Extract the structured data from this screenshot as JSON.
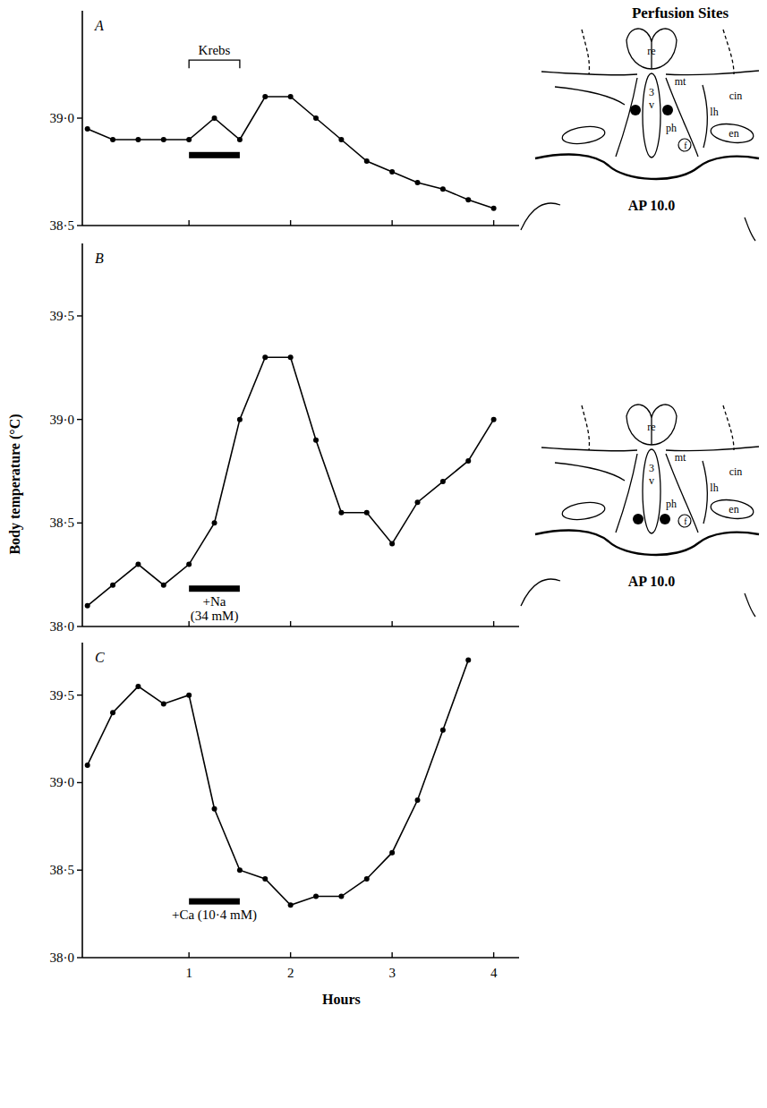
{
  "chart_data": [
    {
      "type": "line",
      "title": "A",
      "x": [
        0,
        0.25,
        0.5,
        0.75,
        1,
        1.25,
        1.5,
        1.75,
        2,
        2.25,
        2.5,
        2.75,
        3,
        3.25,
        3.5,
        3.75,
        4
      ],
      "values": [
        38.95,
        38.9,
        38.9,
        38.9,
        38.9,
        39.0,
        38.9,
        39.1,
        39.1,
        39.0,
        38.9,
        38.8,
        38.75,
        38.7,
        38.67,
        38.62,
        38.58
      ],
      "xlim": [
        -0.05,
        4.25
      ],
      "ylim": [
        38.5,
        39.5
      ],
      "xticks": [
        1,
        2,
        3,
        4
      ],
      "yticks": [
        {
          "value": 38.5,
          "label": "38·5"
        },
        {
          "value": 39,
          "label": "39·0"
        }
      ],
      "tick_labels": "y",
      "grid": false,
      "marker": "circle",
      "color": "#000000",
      "annotations": [
        {
          "text": "Krebs",
          "start": 1,
          "end": 1.5
        }
      ]
    },
    {
      "type": "line",
      "title": "B",
      "x": [
        0,
        0.25,
        0.5,
        0.75,
        1,
        1.25,
        1.5,
        1.75,
        2,
        2.25,
        2.5,
        2.75,
        3,
        3.25,
        3.5,
        3.75,
        4
      ],
      "values": [
        38.1,
        38.2,
        38.3,
        38.2,
        38.3,
        38.5,
        39.0,
        39.3,
        39.3,
        38.9,
        38.55,
        38.55,
        38.4,
        38.6,
        38.7,
        38.8,
        39.0
      ],
      "xlim": [
        -0.05,
        4.25
      ],
      "ylim": [
        38.0,
        39.85
      ],
      "xticks": [
        1,
        2,
        3,
        4
      ],
      "yticks": [
        {
          "value": 38,
          "label": "38·0"
        },
        {
          "value": 38.5,
          "label": "38·5"
        },
        {
          "value": 39,
          "label": "39·0"
        },
        {
          "value": 39.5,
          "label": "39·5"
        }
      ],
      "tick_labels": "y",
      "grid": false,
      "marker": "circle",
      "color": "#000000",
      "ylabel": "Body temperature (°C)",
      "annotations": [
        {
          "text": [
            "+Na",
            "(34 mM)"
          ],
          "start": 1,
          "end": 1.5
        }
      ]
    },
    {
      "type": "line",
      "title": "C",
      "x": [
        0,
        0.25,
        0.5,
        0.75,
        1,
        1.25,
        1.5,
        1.75,
        2,
        2.25,
        2.5,
        2.75,
        3,
        3.25,
        3.5,
        3.75
      ],
      "values": [
        39.1,
        39.4,
        39.55,
        39.45,
        39.5,
        38.85,
        38.5,
        38.45,
        38.3,
        38.35,
        38.35,
        38.45,
        38.6,
        38.9,
        39.3,
        39.7
      ],
      "xlim": [
        -0.05,
        4.25
      ],
      "ylim": [
        38.0,
        39.8
      ],
      "xticks": [
        1,
        2,
        3,
        4
      ],
      "yticks": [
        {
          "value": 38,
          "label": "38·0"
        },
        {
          "value": 38.5,
          "label": "38·5"
        },
        {
          "value": 39,
          "label": "39·0"
        },
        {
          "value": 39.5,
          "label": "39·5"
        }
      ],
      "tick_labels": true,
      "grid": false,
      "marker": "circle",
      "color": "#000000",
      "xlabel": "Hours",
      "annotations": [
        {
          "text": "+Ca (10·4 mM)",
          "start": 1,
          "end": 1.5
        }
      ]
    }
  ],
  "perfusion_sites": {
    "title": "Perfusion Sites",
    "sections": [
      {
        "labels": [
          "re",
          "mt",
          "3",
          "v",
          "ph",
          "f",
          "lh",
          "cin",
          "en"
        ],
        "caption": "AP 10.0"
      },
      {
        "labels": [
          "re",
          "mt",
          "3",
          "v",
          "ph",
          "f",
          "lh",
          "cin",
          "en"
        ],
        "caption": "AP 10.0"
      }
    ]
  }
}
